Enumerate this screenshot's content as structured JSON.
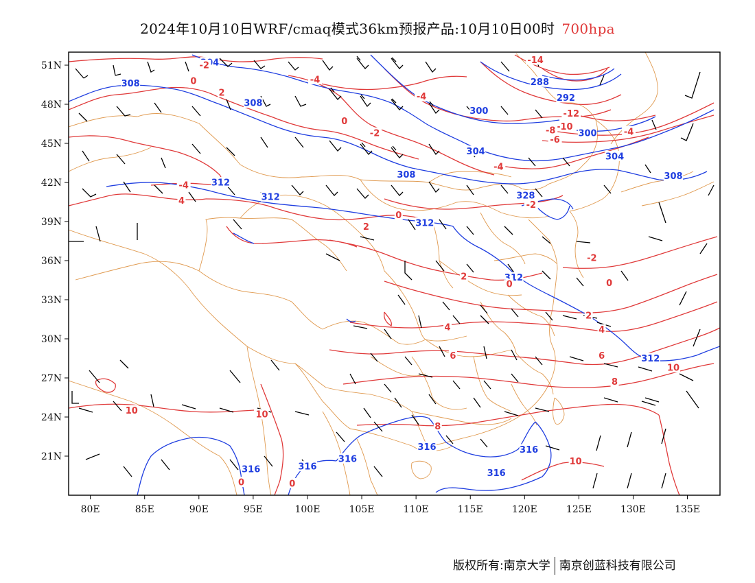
{
  "title": {
    "main": "2024年10月10日WRF/cmaq模式36km预报产品:10月10日00时",
    "level": "700hpa"
  },
  "axes": {
    "lon_labels": [
      "80E",
      "85E",
      "90E",
      "95E",
      "100E",
      "105E",
      "110E",
      "115E",
      "120E",
      "125E",
      "130E",
      "135E"
    ],
    "lat_labels": [
      "51N",
      "48N",
      "45N",
      "42N",
      "39N",
      "36N",
      "33N",
      "30N",
      "27N",
      "24N",
      "21N"
    ],
    "lon_range": [
      78,
      138
    ],
    "lat_range": [
      18,
      52
    ]
  },
  "colors": {
    "geopotential": "#1f3ee0",
    "temperature": "#e03a3a",
    "border": "#e09a50",
    "barb": "#000000",
    "level_text": "#e03a3a"
  },
  "height_labels": [
    {
      "lon": 91.0,
      "lat": 51.2,
      "text": "304"
    },
    {
      "lon": 83.7,
      "lat": 49.6,
      "text": "308"
    },
    {
      "lon": 95.0,
      "lat": 48.1,
      "text": "308"
    },
    {
      "lon": 121.4,
      "lat": 49.7,
      "text": "288"
    },
    {
      "lon": 123.8,
      "lat": 48.5,
      "text": "292"
    },
    {
      "lon": 115.8,
      "lat": 47.5,
      "text": "300"
    },
    {
      "lon": 125.8,
      "lat": 45.8,
      "text": "300"
    },
    {
      "lon": 115.5,
      "lat": 44.4,
      "text": "304"
    },
    {
      "lon": 128.3,
      "lat": 44.0,
      "text": "304"
    },
    {
      "lon": 109.1,
      "lat": 42.6,
      "text": "308"
    },
    {
      "lon": 133.7,
      "lat": 42.5,
      "text": "308"
    },
    {
      "lon": 92.0,
      "lat": 42.0,
      "text": "312"
    },
    {
      "lon": 96.6,
      "lat": 40.9,
      "text": "312"
    },
    {
      "lon": 120.1,
      "lat": 41.0,
      "text": "328"
    },
    {
      "lon": 110.8,
      "lat": 38.9,
      "text": "312"
    },
    {
      "lon": 119.0,
      "lat": 34.7,
      "text": "312"
    },
    {
      "lon": 131.6,
      "lat": 28.5,
      "text": "312"
    },
    {
      "lon": 111.0,
      "lat": 21.7,
      "text": "316"
    },
    {
      "lon": 120.4,
      "lat": 21.5,
      "text": "316"
    },
    {
      "lon": 103.7,
      "lat": 20.8,
      "text": "316"
    },
    {
      "lon": 94.8,
      "lat": 20.0,
      "text": "316"
    },
    {
      "lon": 100.0,
      "lat": 20.2,
      "text": "316"
    },
    {
      "lon": 117.4,
      "lat": 19.7,
      "text": "316"
    }
  ],
  "temp_labels": [
    {
      "lon": 90.5,
      "lat": 51.0,
      "text": "-2"
    },
    {
      "lon": 89.5,
      "lat": 49.8,
      "text": "0"
    },
    {
      "lon": 100.7,
      "lat": 49.9,
      "text": "-4"
    },
    {
      "lon": 92.1,
      "lat": 48.9,
      "text": "2"
    },
    {
      "lon": 110.5,
      "lat": 48.6,
      "text": "-4"
    },
    {
      "lon": 121.0,
      "lat": 51.4,
      "text": "-14"
    },
    {
      "lon": 124.3,
      "lat": 47.3,
      "text": "-12"
    },
    {
      "lon": 123.7,
      "lat": 46.3,
      "text": "-10"
    },
    {
      "lon": 122.4,
      "lat": 46.0,
      "text": "-8"
    },
    {
      "lon": 122.8,
      "lat": 45.3,
      "text": "-6"
    },
    {
      "lon": 129.6,
      "lat": 45.9,
      "text": "-4"
    },
    {
      "lon": 103.4,
      "lat": 46.7,
      "text": "0"
    },
    {
      "lon": 106.2,
      "lat": 45.8,
      "text": "-2"
    },
    {
      "lon": 117.6,
      "lat": 43.2,
      "text": "-4"
    },
    {
      "lon": 88.6,
      "lat": 41.8,
      "text": "-4"
    },
    {
      "lon": 88.4,
      "lat": 40.6,
      "text": "4"
    },
    {
      "lon": 120.6,
      "lat": 40.3,
      "text": "-2"
    },
    {
      "lon": 108.4,
      "lat": 39.5,
      "text": "0"
    },
    {
      "lon": 105.4,
      "lat": 38.6,
      "text": "2"
    },
    {
      "lon": 126.2,
      "lat": 36.2,
      "text": "-2"
    },
    {
      "lon": 114.4,
      "lat": 34.8,
      "text": "2"
    },
    {
      "lon": 118.6,
      "lat": 34.2,
      "text": "0"
    },
    {
      "lon": 127.8,
      "lat": 34.3,
      "text": "0"
    },
    {
      "lon": 125.9,
      "lat": 31.8,
      "text": "2"
    },
    {
      "lon": 112.9,
      "lat": 30.9,
      "text": "4"
    },
    {
      "lon": 127.1,
      "lat": 30.7,
      "text": "4"
    },
    {
      "lon": 113.4,
      "lat": 28.7,
      "text": "6"
    },
    {
      "lon": 127.1,
      "lat": 28.7,
      "text": "6"
    },
    {
      "lon": 128.3,
      "lat": 26.7,
      "text": "8"
    },
    {
      "lon": 133.7,
      "lat": 27.8,
      "text": "10"
    },
    {
      "lon": 83.8,
      "lat": 24.5,
      "text": "10"
    },
    {
      "lon": 95.8,
      "lat": 24.2,
      "text": "10"
    },
    {
      "lon": 112.0,
      "lat": 23.3,
      "text": "8"
    },
    {
      "lon": 124.7,
      "lat": 20.6,
      "text": "10"
    },
    {
      "lon": 93.9,
      "lat": 19.0,
      "text": "0"
    },
    {
      "lon": 98.6,
      "lat": 18.9,
      "text": "0"
    }
  ],
  "footer": {
    "copyright_left": "版权所有:南京大学",
    "copyright_right": "南京创蓝科技有限公司"
  }
}
